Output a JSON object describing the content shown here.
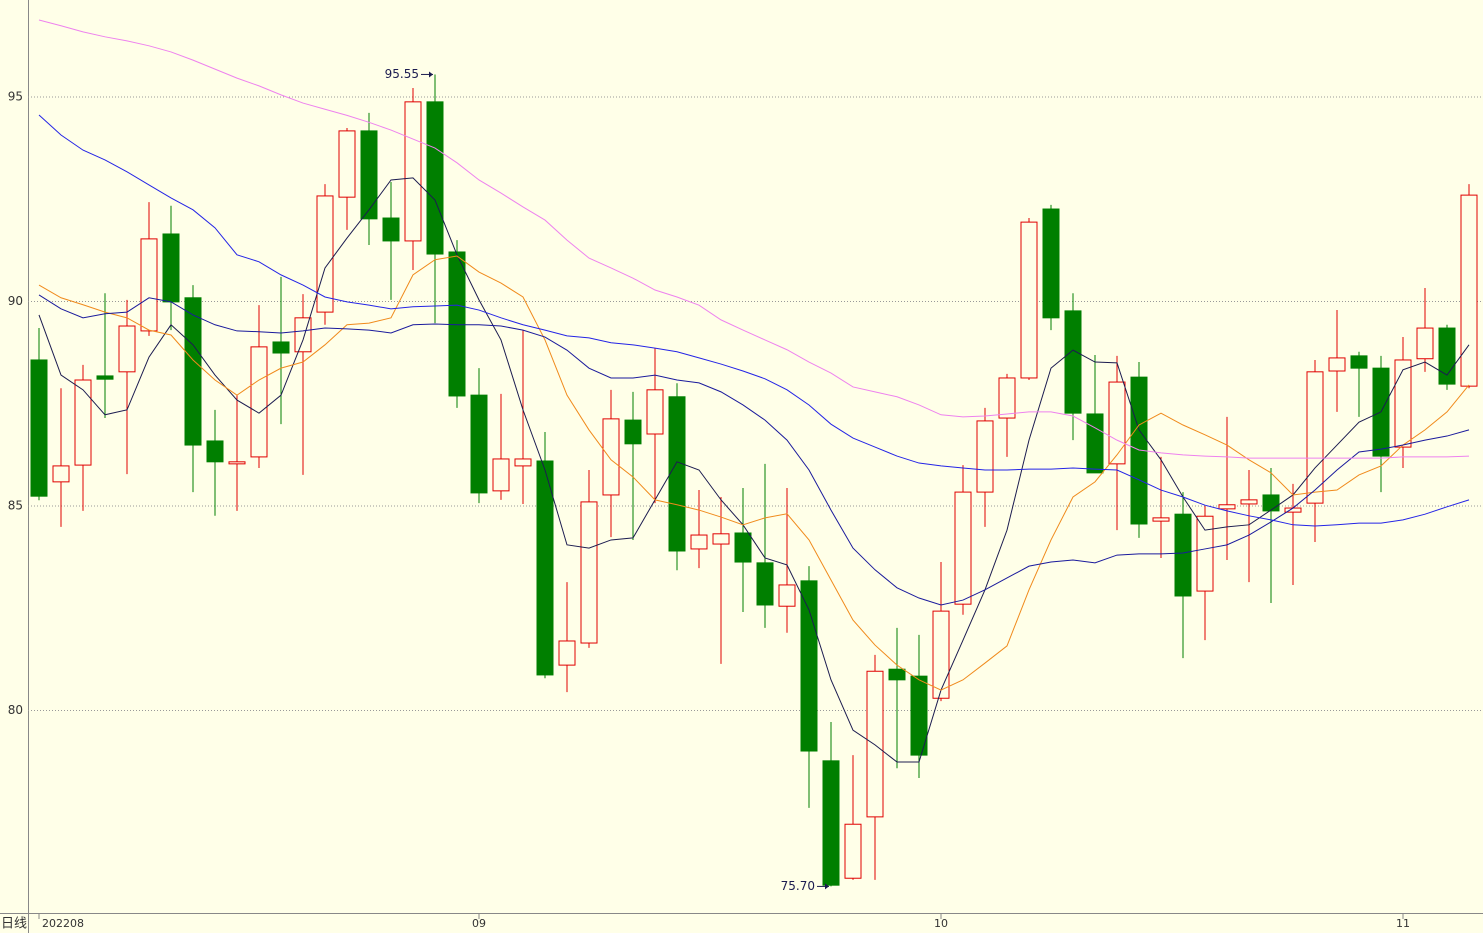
{
  "chart_data": {
    "type": "candlestick",
    "period_label": "日线",
    "categories": [
      "202208",
      null,
      null,
      null,
      null,
      null,
      null,
      null,
      null,
      null,
      null,
      null,
      null,
      null,
      null,
      null,
      null,
      null,
      null,
      null,
      "09",
      null,
      null,
      null,
      null,
      null,
      null,
      null,
      null,
      null,
      null,
      null,
      null,
      null,
      null,
      null,
      null,
      null,
      null,
      null,
      null,
      "10",
      null,
      null,
      null,
      null,
      null,
      null,
      null,
      null,
      null,
      null,
      null,
      null,
      null,
      null,
      null,
      null,
      null,
      null,
      null,
      null,
      "11",
      null,
      null,
      null
    ],
    "candles": {
      "open": [
        88.57,
        85.59,
        86.0,
        88.18,
        88.28,
        89.28,
        91.65,
        90.09,
        86.59,
        86.03,
        86.2,
        89.01,
        88.77,
        89.74,
        92.55,
        94.17,
        92.04,
        91.48,
        94.88,
        91.21,
        87.71,
        85.37,
        85.98,
        86.1,
        81.11,
        81.65,
        85.27,
        87.1,
        86.76,
        87.67,
        83.95,
        84.07,
        84.34,
        83.61,
        82.55,
        83.17,
        78.77,
        75.9,
        77.4,
        81.01,
        80.84,
        80.3,
        82.6,
        85.34,
        87.15,
        88.13,
        92.26,
        89.77,
        87.25,
        86.03,
        88.15,
        84.63,
        84.8,
        82.92,
        84.93,
        85.05,
        85.27,
        84.85,
        85.07,
        88.3,
        88.67,
        88.37,
        86.44,
        88.6,
        89.35,
        87.93
      ],
      "high": [
        89.35,
        87.88,
        88.45,
        90.2,
        90.04,
        92.43,
        92.34,
        90.4,
        87.35,
        87.71,
        89.91,
        90.6,
        90.18,
        92.87,
        94.24,
        94.61,
        92.92,
        95.22,
        95.55,
        91.5,
        88.37,
        87.74,
        89.3,
        86.81,
        83.14,
        85.88,
        87.84,
        87.79,
        88.86,
        88.0,
        85.39,
        85.22,
        85.44,
        86.03,
        85.44,
        83.53,
        79.72,
        78.91,
        81.36,
        82.02,
        81.85,
        83.63,
        86.0,
        87.4,
        88.23,
        92.04,
        92.36,
        90.2,
        88.69,
        88.67,
        88.52,
        86.2,
        85.34,
        85.0,
        87.18,
        85.88,
        85.93,
        85.54,
        88.57,
        89.79,
        88.77,
        88.67,
        89.13,
        90.33,
        89.43,
        92.87
      ],
      "low": [
        85.14,
        84.49,
        84.88,
        87.15,
        85.78,
        89.16,
        89.3,
        85.34,
        84.76,
        84.88,
        85.93,
        87.0,
        85.76,
        89.43,
        91.75,
        91.38,
        90.04,
        90.77,
        89.47,
        87.4,
        85.07,
        85.15,
        85.05,
        80.79,
        80.45,
        81.53,
        84.24,
        84.17,
        85.07,
        83.43,
        83.48,
        81.14,
        82.41,
        82.02,
        81.9,
        77.62,
        75.7,
        75.86,
        75.86,
        78.59,
        78.35,
        80.23,
        82.34,
        84.49,
        86.2,
        88.08,
        89.3,
        86.61,
        85.81,
        84.41,
        84.22,
        83.73,
        81.28,
        81.72,
        83.68,
        83.14,
        82.63,
        83.07,
        84.12,
        87.3,
        87.18,
        85.34,
        85.93,
        88.28,
        87.84,
        87.88
      ],
      "close": [
        85.24,
        85.98,
        88.08,
        88.1,
        89.4,
        91.53,
        89.99,
        86.49,
        86.08,
        86.08,
        88.89,
        88.74,
        89.6,
        92.58,
        94.17,
        92.02,
        91.48,
        94.88,
        91.16,
        87.69,
        85.32,
        86.15,
        86.15,
        80.87,
        81.7,
        85.1,
        87.13,
        86.52,
        87.84,
        83.9,
        84.29,
        84.32,
        83.63,
        82.58,
        83.07,
        79.01,
        75.73,
        77.22,
        80.96,
        80.75,
        78.91,
        82.43,
        85.34,
        87.08,
        88.13,
        91.94,
        89.6,
        87.27,
        85.81,
        88.03,
        84.56,
        84.71,
        82.8,
        84.75,
        85.03,
        85.15,
        84.88,
        84.95,
        88.28,
        88.62,
        88.37,
        86.22,
        88.57,
        89.35,
        87.98,
        92.6
      ]
    },
    "up_color": "#e00000",
    "down_color": "#007f00",
    "moving_averages": [
      {
        "color": "#1c1c50",
        "values": [
          89.67,
          88.2,
          87.84,
          87.23,
          87.35,
          88.64,
          89.43,
          88.94,
          88.2,
          87.59,
          87.27,
          87.71,
          89.06,
          90.82,
          91.55,
          92.24,
          92.97,
          93.02,
          92.48,
          91.14,
          90.04,
          89.06,
          87.35,
          85.88,
          84.05,
          83.97,
          84.17,
          84.22,
          85.15,
          86.08,
          85.88,
          85.15,
          84.54,
          83.73,
          83.56,
          82.46,
          80.75,
          79.52,
          79.16,
          78.74,
          78.74,
          80.5,
          81.72,
          82.95,
          84.41,
          86.61,
          88.37,
          88.81,
          88.52,
          88.5,
          86.86,
          86.13,
          85.22,
          84.41,
          84.49,
          84.54,
          84.9,
          85.27,
          85.93,
          86.49,
          87.05,
          87.3,
          88.33,
          88.52,
          88.2,
          88.94
        ]
      },
      {
        "color": "#f08a1c",
        "values": [
          90.4,
          90.09,
          89.92,
          89.74,
          89.6,
          89.3,
          89.18,
          88.57,
          88.08,
          87.71,
          88.08,
          88.37,
          88.52,
          88.94,
          89.43,
          89.47,
          89.6,
          90.65,
          91.02,
          91.11,
          90.72,
          90.45,
          90.11,
          89.06,
          87.71,
          86.86,
          86.13,
          85.71,
          85.15,
          85.03,
          84.9,
          84.73,
          84.54,
          84.71,
          84.81,
          84.17,
          83.19,
          82.21,
          81.6,
          81.11,
          80.75,
          80.5,
          80.75,
          81.16,
          81.58,
          82.95,
          84.17,
          85.22,
          85.59,
          86.25,
          86.98,
          87.27,
          86.98,
          86.74,
          86.49,
          86.13,
          85.81,
          85.27,
          85.34,
          85.39,
          85.76,
          85.98,
          86.49,
          86.86,
          87.3,
          87.96
        ]
      },
      {
        "color": "#1a1a9c",
        "values": [
          90.16,
          89.82,
          89.6,
          89.7,
          89.74,
          90.09,
          89.99,
          89.67,
          89.43,
          89.28,
          89.26,
          89.23,
          89.28,
          89.35,
          89.33,
          89.3,
          89.23,
          89.43,
          89.45,
          89.43,
          89.43,
          89.4,
          89.3,
          89.13,
          88.81,
          88.37,
          88.13,
          88.13,
          88.2,
          88.08,
          88.01,
          87.79,
          87.47,
          87.1,
          86.61,
          85.88,
          84.9,
          83.97,
          83.44,
          83.0,
          82.75,
          82.58,
          82.7,
          82.95,
          83.24,
          83.53,
          83.63,
          83.68,
          83.61,
          83.8,
          83.83,
          83.83,
          83.85,
          83.95,
          84.05,
          84.29,
          84.61,
          84.95,
          85.39,
          85.88,
          86.32,
          86.39,
          86.49,
          86.61,
          86.71,
          86.86
        ]
      },
      {
        "color": "#2424e6",
        "values": [
          94.56,
          94.07,
          93.7,
          93.46,
          93.17,
          92.85,
          92.53,
          92.24,
          91.8,
          91.14,
          90.97,
          90.65,
          90.4,
          90.11,
          89.99,
          89.91,
          89.82,
          89.87,
          89.89,
          89.91,
          89.79,
          89.6,
          89.43,
          89.3,
          89.16,
          89.11,
          88.99,
          88.94,
          88.86,
          88.77,
          88.62,
          88.47,
          88.3,
          88.11,
          87.84,
          87.47,
          87.0,
          86.66,
          86.44,
          86.22,
          86.05,
          85.98,
          85.93,
          85.88,
          85.88,
          85.9,
          85.9,
          85.93,
          85.9,
          85.88,
          85.64,
          85.39,
          85.22,
          85.02,
          84.88,
          84.76,
          84.66,
          84.54,
          84.51,
          84.54,
          84.58,
          84.58,
          84.66,
          84.8,
          84.98,
          85.15
        ]
      },
      {
        "color": "#ee82ee",
        "values": [
          96.88,
          96.74,
          96.59,
          96.47,
          96.37,
          96.25,
          96.1,
          95.9,
          95.68,
          95.46,
          95.27,
          95.05,
          94.85,
          94.7,
          94.55,
          94.38,
          94.19,
          93.97,
          93.75,
          93.39,
          92.97,
          92.65,
          92.31,
          91.99,
          91.5,
          91.06,
          90.82,
          90.57,
          90.28,
          90.11,
          89.91,
          89.55,
          89.3,
          89.06,
          88.82,
          88.52,
          88.25,
          87.91,
          87.79,
          87.67,
          87.47,
          87.23,
          87.18,
          87.2,
          87.25,
          87.3,
          87.3,
          87.2,
          86.91,
          86.61,
          86.37,
          86.3,
          86.25,
          86.22,
          86.2,
          86.17,
          86.17,
          86.17,
          86.17,
          86.17,
          86.17,
          86.17,
          86.2,
          86.2,
          86.2,
          86.22
        ]
      }
    ],
    "annotations": [
      {
        "text": "95.55",
        "value": 95.55
      },
      {
        "text": "75.70",
        "value": 75.7
      }
    ],
    "ylim": [
      75.05,
      97.37
    ],
    "yticks": [
      80,
      85,
      90,
      95
    ],
    "grid": true
  }
}
